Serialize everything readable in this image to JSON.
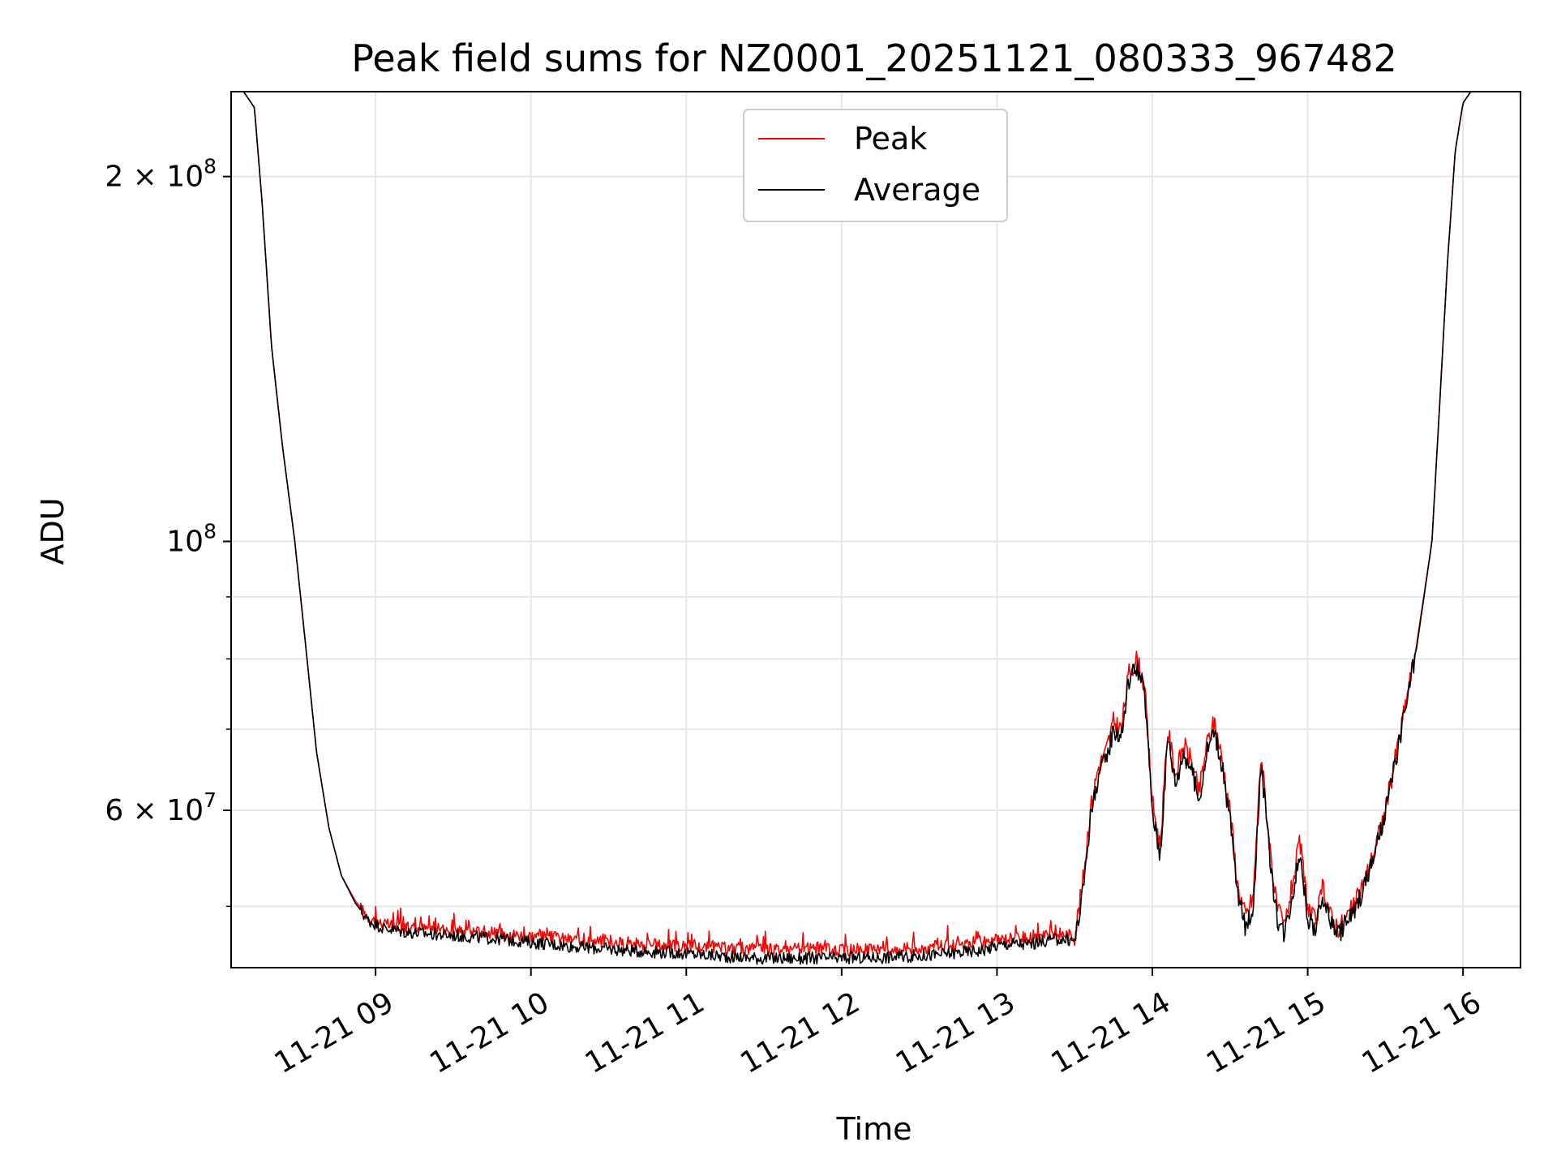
{
  "chart_data": {
    "type": "line",
    "title": "Peak field sums for NZ0001_20251121_080333_967482",
    "xlabel": "Time",
    "ylabel": "ADU",
    "yscale": "log",
    "ylim": [
      44500000,
      235000000
    ],
    "xlim_hours": [
      8.07,
      16.37
    ],
    "grid": true,
    "legend": {
      "position": "top-center",
      "entries": [
        "Peak",
        "Average"
      ]
    },
    "x_ticks": [
      {
        "hour": 9,
        "label": "11-21 09"
      },
      {
        "hour": 10,
        "label": "11-21 10"
      },
      {
        "hour": 11,
        "label": "11-21 11"
      },
      {
        "hour": 12,
        "label": "11-21 12"
      },
      {
        "hour": 13,
        "label": "11-21 13"
      },
      {
        "hour": 14,
        "label": "11-21 14"
      },
      {
        "hour": 15,
        "label": "11-21 15"
      },
      {
        "hour": 16,
        "label": "11-21 16"
      }
    ],
    "y_major_ticks": [
      {
        "value": 60000000,
        "base": "6",
        "exp": "7"
      },
      {
        "value": 100000000,
        "base": "",
        "exp": "8"
      },
      {
        "value": 200000000,
        "base": "2",
        "exp": "8"
      }
    ],
    "y_minor_grid": [
      50000000,
      60000000,
      70000000,
      80000000,
      90000000,
      100000000,
      200000000
    ],
    "series": [
      {
        "name": "Peak",
        "color": "#ff0000",
        "x": [
          8.07,
          8.15,
          8.22,
          8.27,
          8.33,
          8.4,
          8.48,
          8.55,
          8.62,
          8.7,
          8.78,
          8.87,
          8.95,
          9.05,
          9.2,
          9.5,
          9.8,
          10.0,
          10.3,
          10.6,
          10.9,
          11.2,
          11.5,
          11.8,
          12.0,
          12.3,
          12.6,
          12.9,
          13.0,
          13.1,
          13.2,
          13.3,
          13.4,
          13.5,
          13.55,
          13.6,
          13.65,
          13.7,
          13.75,
          13.8,
          13.85,
          13.9,
          13.95,
          14.0,
          14.05,
          14.1,
          14.15,
          14.2,
          14.25,
          14.3,
          14.35,
          14.4,
          14.45,
          14.5,
          14.55,
          14.6,
          14.65,
          14.7,
          14.75,
          14.8,
          14.85,
          14.9,
          14.95,
          15.0,
          15.05,
          15.1,
          15.15,
          15.2,
          15.3,
          15.4,
          15.5,
          15.6,
          15.7,
          15.8,
          15.85,
          15.9,
          15.95,
          16.0,
          16.05,
          16.1,
          16.2,
          16.37
        ],
        "y": [
          235000000,
          235000000,
          228000000,
          190000000,
          145000000,
          120000000,
          100000000,
          82000000,
          67000000,
          58000000,
          53000000,
          50500000,
          49000000,
          48300000,
          48000000,
          47800000,
          47500000,
          47300000,
          46900000,
          46600000,
          46400000,
          46200000,
          46100000,
          46100000,
          46000000,
          46100000,
          46300000,
          46600000,
          46900000,
          47100000,
          47000000,
          47300000,
          47500000,
          47300000,
          52000000,
          60000000,
          65000000,
          67000000,
          71000000,
          70000000,
          78000000,
          80000000,
          76000000,
          61000000,
          56000000,
          70000000,
          64000000,
          68000000,
          66000000,
          62000000,
          68000000,
          71000000,
          66000000,
          60000000,
          52000000,
          49000000,
          51000000,
          67000000,
          57000000,
          50000000,
          48000000,
          52000000,
          56500000,
          50000000,
          48500000,
          52000000,
          49000000,
          48000000,
          50000000,
          54000000,
          60000000,
          70000000,
          82000000,
          100000000,
          130000000,
          170000000,
          210000000,
          230000000,
          235000000,
          235000000,
          235000000,
          235000000
        ]
      },
      {
        "name": "Average",
        "color": "#000000",
        "x": [
          8.07,
          8.15,
          8.22,
          8.27,
          8.33,
          8.4,
          8.48,
          8.55,
          8.62,
          8.7,
          8.78,
          8.87,
          8.95,
          9.05,
          9.2,
          9.5,
          9.8,
          10.0,
          10.3,
          10.6,
          10.9,
          11.2,
          11.5,
          11.8,
          12.0,
          12.3,
          12.6,
          12.9,
          13.0,
          13.1,
          13.2,
          13.3,
          13.4,
          13.5,
          13.55,
          13.6,
          13.65,
          13.7,
          13.75,
          13.8,
          13.85,
          13.9,
          13.95,
          14.0,
          14.05,
          14.1,
          14.15,
          14.2,
          14.25,
          14.3,
          14.35,
          14.4,
          14.45,
          14.5,
          14.55,
          14.6,
          14.65,
          14.7,
          14.75,
          14.8,
          14.85,
          14.9,
          14.95,
          15.0,
          15.05,
          15.1,
          15.15,
          15.2,
          15.3,
          15.4,
          15.5,
          15.6,
          15.7,
          15.8,
          15.85,
          15.9,
          15.95,
          16.0,
          16.05,
          16.1,
          16.2,
          16.37
        ],
        "y": [
          235000000,
          235000000,
          228000000,
          190000000,
          145000000,
          120000000,
          100000000,
          82000000,
          67000000,
          58000000,
          53000000,
          50300000,
          48700000,
          48000000,
          47600000,
          47300000,
          47000000,
          46700000,
          46300000,
          46000000,
          45800000,
          45500000,
          45300000,
          45300000,
          45300000,
          45400000,
          45600000,
          46000000,
          46400000,
          46600000,
          46500000,
          46800000,
          47000000,
          46800000,
          51000000,
          59000000,
          64000000,
          66000000,
          70000000,
          69000000,
          77000000,
          79000000,
          75000000,
          60000000,
          55000000,
          69000000,
          63000000,
          67000000,
          65000000,
          61000000,
          67000000,
          70000000,
          65000000,
          59000000,
          51000000,
          48000000,
          50000000,
          66000000,
          56000000,
          49000000,
          47500000,
          51000000,
          55500000,
          49000000,
          47800000,
          51000000,
          48500000,
          47500000,
          49500000,
          53500000,
          59500000,
          69500000,
          81500000,
          100000000,
          130000000,
          170000000,
          210000000,
          230000000,
          235000000,
          235000000,
          235000000,
          235000000
        ]
      }
    ]
  }
}
